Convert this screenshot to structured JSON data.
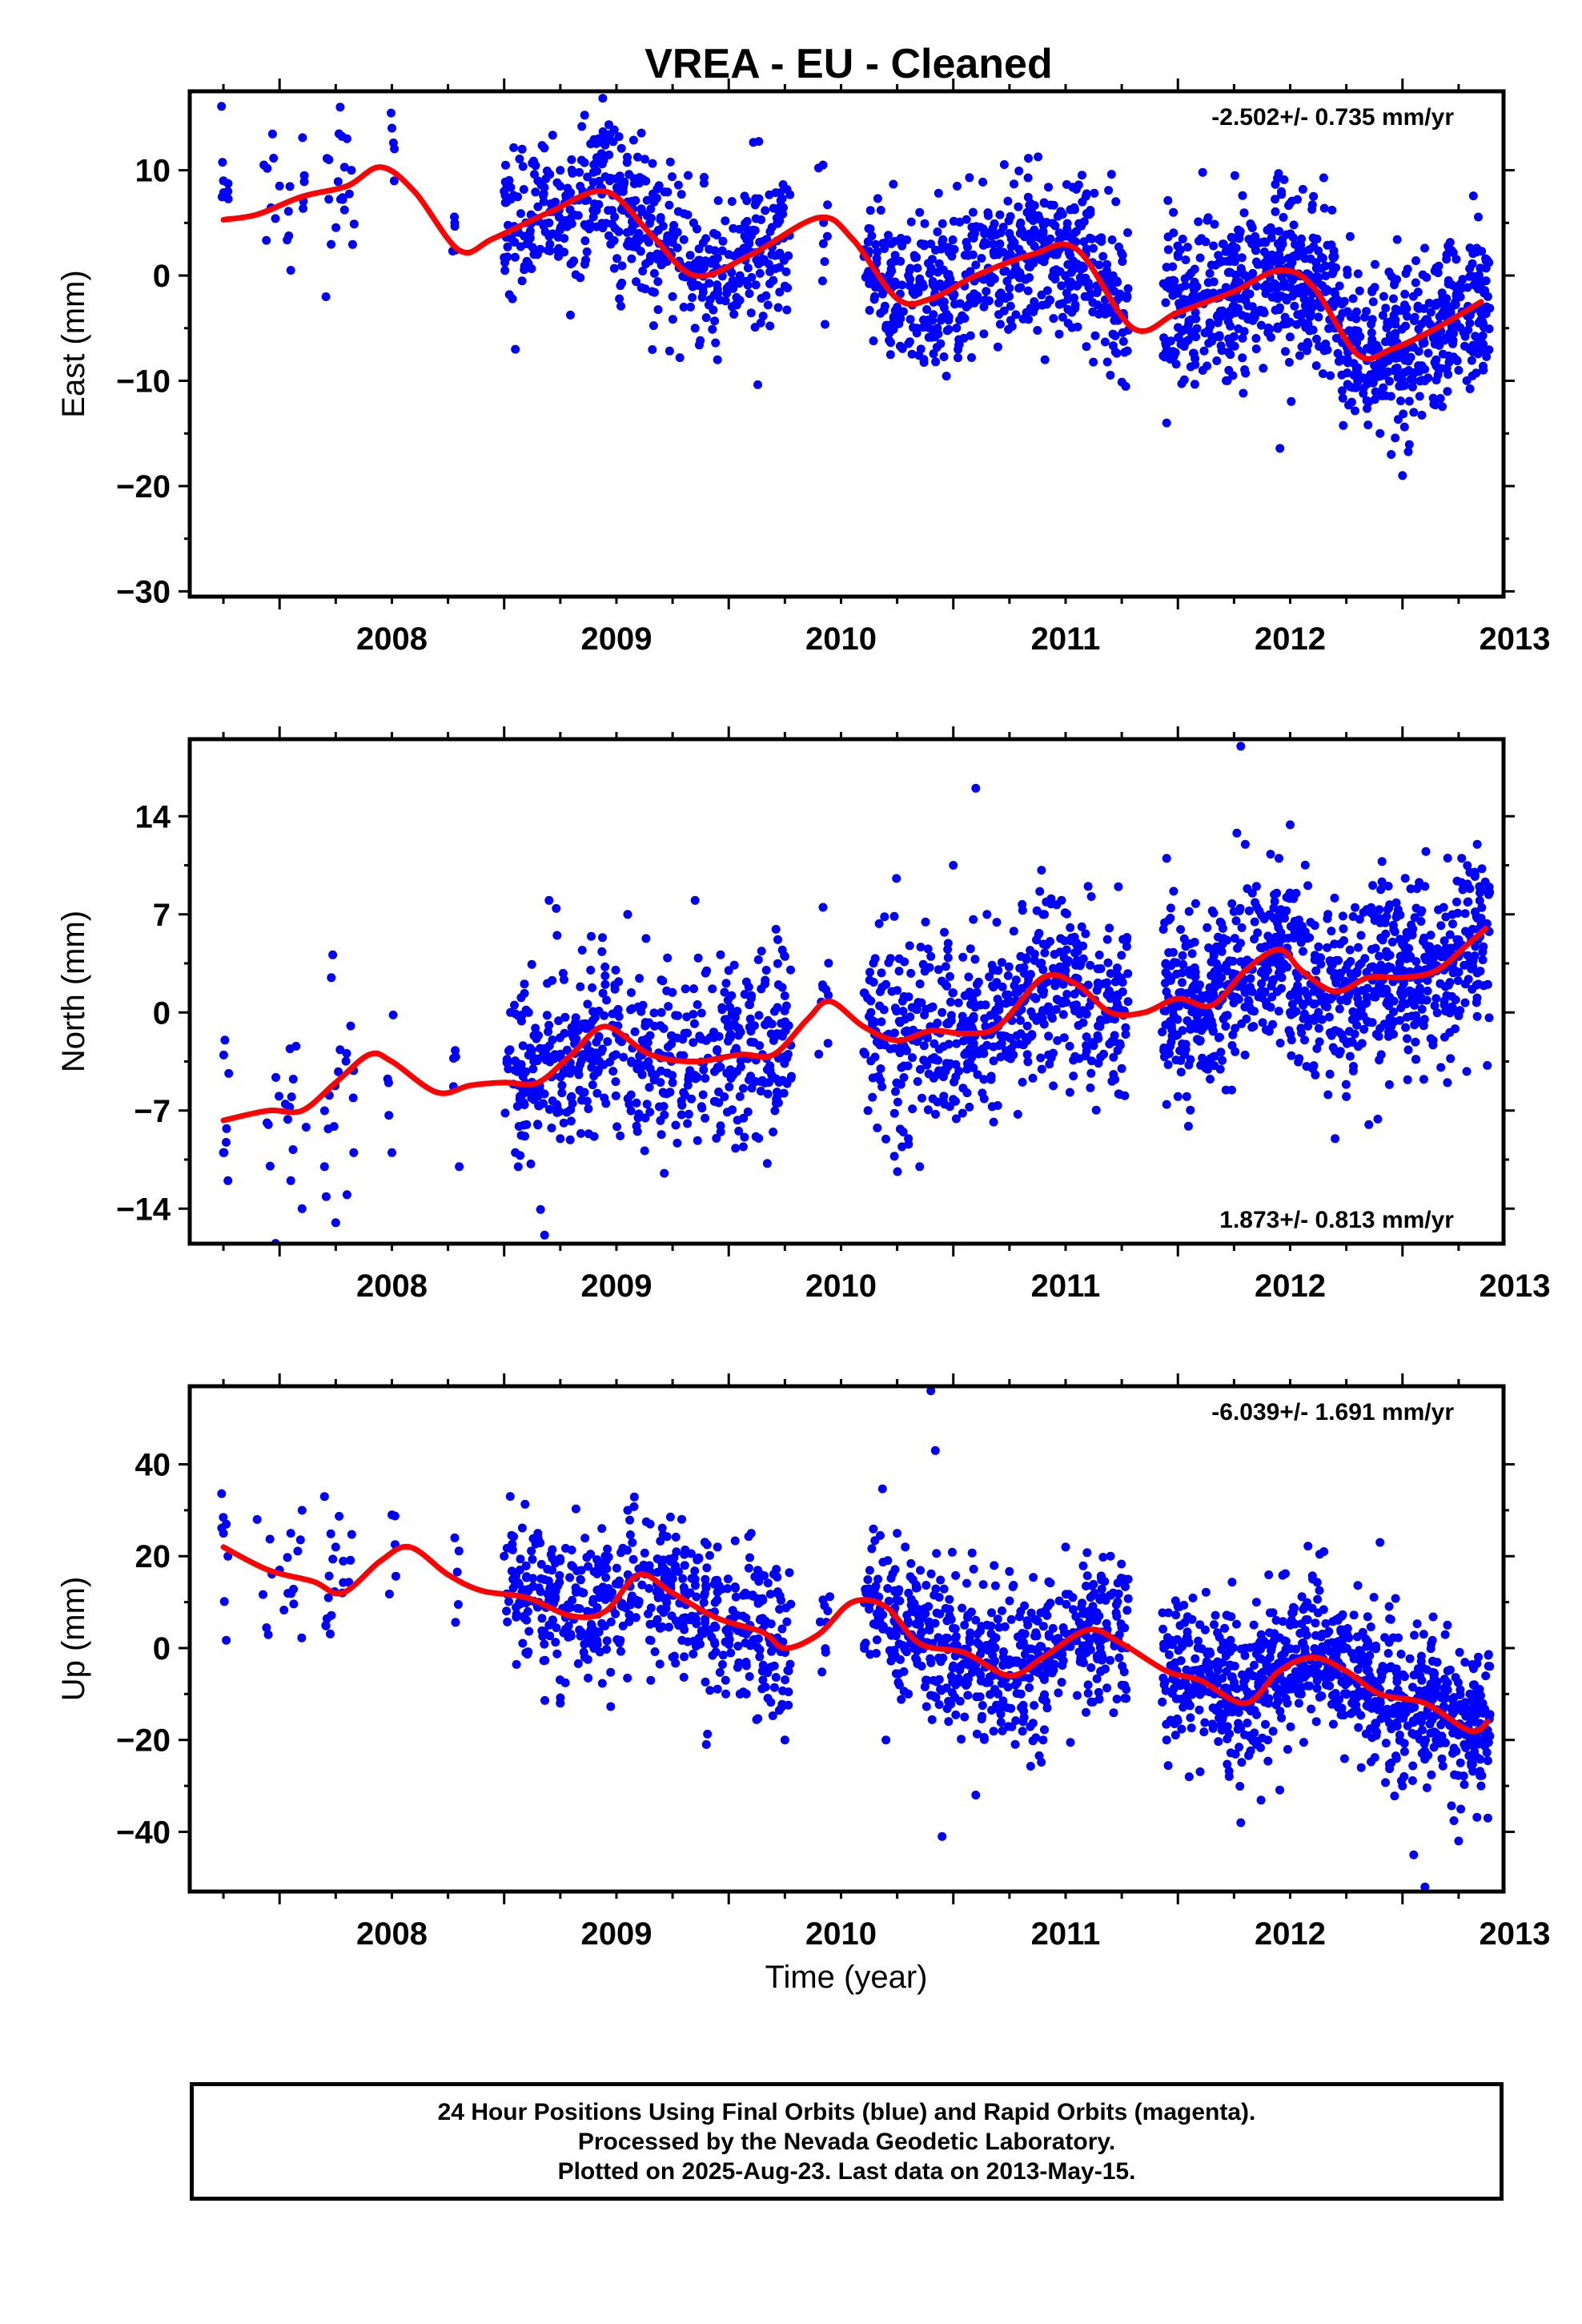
{
  "title": "VREA  - EU - Cleaned",
  "xlabel": "Time (year)",
  "footer": {
    "line1": "24 Hour Positions Using Final Orbits (blue) and Rapid Orbits (magenta).",
    "line2": "Processed by the Nevada Geodetic Laboratory.",
    "line3": "Plotted on 2025-Aug-23. Last data on 2013-May-15."
  },
  "colors": {
    "data": "#0000ff",
    "fit": "#ff0000",
    "frame": "#000000"
  },
  "chart_data": [
    {
      "type": "scatter",
      "component": "East",
      "ylabel": "East (mm)",
      "rate_text": "-2.502+/- 0.735 mm/yr",
      "rate_position": "top-right",
      "xlim": [
        2007.6,
        2013.45
      ],
      "ylim": [
        -30.5,
        17.5
      ],
      "yticks": [
        10,
        0,
        -10,
        -20,
        -30
      ],
      "xticks": [
        2008,
        2009,
        2010,
        2011,
        2012,
        2013
      ],
      "grid": false,
      "fit_curve": {
        "x": [
          2007.75,
          2007.9,
          2008.1,
          2008.3,
          2008.45,
          2008.6,
          2008.8,
          2008.95,
          2009.2,
          2009.45,
          2009.65,
          2009.85,
          2010.1,
          2010.4,
          2010.55,
          2010.75,
          2010.9,
          2011.1,
          2011.35,
          2011.55,
          2011.8,
          2012.0,
          2012.25,
          2012.45,
          2012.6,
          2012.8,
          2012.95,
          2013.15,
          2013.35
        ],
        "y": [
          5.3,
          5.8,
          7.5,
          8.5,
          10.3,
          8.0,
          2.4,
          3.5,
          6.0,
          8.0,
          4.0,
          0.0,
          2.0,
          5.5,
          3.5,
          -2.2,
          -2.2,
          0.0,
          2.0,
          2.5,
          -5.0,
          -3.5,
          -1.5,
          0.5,
          -1.0,
          -7.5,
          -7.0,
          -5.0,
          -2.5
        ]
      },
      "observations": {
        "x": [
          2007.75,
          2007.77,
          2007.93,
          2008.0,
          2008.05,
          2008.11,
          2008.22,
          2008.27,
          2008.3,
          2008.32,
          2008.5,
          2008.78,
          2009.0,
          2009.05,
          2009.08,
          2009.15,
          2009.2,
          2009.25,
          2009.3,
          2009.35,
          2009.42,
          2009.47,
          2009.55,
          2009.6,
          2009.7,
          2009.75,
          2009.8,
          2009.85,
          2009.9,
          2009.95,
          2010.0,
          2010.05,
          2010.15,
          2010.25,
          2010.42,
          2010.62,
          2010.65,
          2010.7,
          2010.75,
          2010.8,
          2010.85,
          2010.9,
          2010.95,
          2011.0,
          2011.05,
          2011.1,
          2011.15,
          2011.2,
          2011.25,
          2011.3,
          2011.35,
          2011.4,
          2011.45,
          2011.5,
          2011.55,
          2011.6,
          2011.65,
          2011.7,
          2011.75,
          2011.95,
          2011.98,
          2012.0,
          2012.05,
          2012.1,
          2012.15,
          2012.2,
          2012.25,
          2012.3,
          2012.35,
          2012.4,
          2012.45,
          2012.5,
          2012.6,
          2012.7,
          2012.75,
          2012.8,
          2012.85,
          2012.9,
          2012.95,
          2013.0,
          2013.05,
          2013.1,
          2013.15,
          2013.2,
          2013.25,
          2013.3,
          2013.35,
          2013.38
        ],
        "y": [
          9.0,
          8.0,
          10.5,
          8.5,
          0.5,
          9.5,
          11.0,
          16.0,
          13.0,
          10.0,
          14.0,
          5.0,
          8.0,
          -7.0,
          12.0,
          9.0,
          5.0,
          10.0,
          11.0,
          8.0,
          13.0,
          9.0,
          7.0,
          4.0,
          1.0,
          -2.0,
          -3.0,
          -5.0,
          -4.0,
          -8.0,
          2.0,
          0.0,
          3.0,
          -1.0,
          10.5,
          2.0,
          -2.0,
          -5.0,
          -3.0,
          0.0,
          6.0,
          3.0,
          -4.0,
          -2.0,
          -1.0,
          1.0,
          3.0,
          2.0,
          4.0,
          5.0,
          6.0,
          4.0,
          2.0,
          0.0,
          -1.0,
          -2.0,
          1.0,
          -3.0,
          -4.0,
          -14.0,
          6.0,
          2.0,
          0.0,
          -2.0,
          1.0,
          3.0,
          2.0,
          0.0,
          -1.0,
          1.0,
          2.0,
          0.0,
          -3.0,
          -5.0,
          -8.0,
          -10.0,
          -12.0,
          -15.0,
          -17.0,
          -19.0,
          -13.0,
          -10.0,
          -8.0,
          -11.0,
          -9.0,
          -7.0,
          -6.0,
          -2.0
        ]
      }
    },
    {
      "type": "scatter",
      "component": "North",
      "ylabel": "North (mm)",
      "rate_text": "1.873+/- 0.813 mm/yr",
      "rate_position": "bottom-right",
      "xlim": [
        2007.6,
        2013.45
      ],
      "ylim": [
        -16.5,
        19.5
      ],
      "yticks": [
        14,
        7,
        0,
        -7,
        -14
      ],
      "xticks": [
        2008,
        2009,
        2010,
        2011,
        2012,
        2013
      ],
      "grid": false,
      "fit_curve": {
        "x": [
          2007.75,
          2007.95,
          2008.1,
          2008.25,
          2008.4,
          2008.5,
          2008.7,
          2008.85,
          2009.0,
          2009.15,
          2009.3,
          2009.45,
          2009.65,
          2009.85,
          2010.05,
          2010.2,
          2010.35,
          2010.45,
          2010.6,
          2010.75,
          2010.9,
          2011.05,
          2011.2,
          2011.4,
          2011.55,
          2011.7,
          2011.85,
          2012.0,
          2012.15,
          2012.3,
          2012.45,
          2012.55,
          2012.7,
          2012.85,
          2013.0,
          2013.15,
          2013.3,
          2013.37
        ],
        "y": [
          -7.7,
          -7.0,
          -7.0,
          -5.0,
          -3.0,
          -3.5,
          -5.7,
          -5.2,
          -5.0,
          -5.0,
          -3.0,
          -1.0,
          -3.0,
          -3.5,
          -3.0,
          -3.0,
          -0.5,
          0.8,
          -1.0,
          -2.0,
          -1.3,
          -1.5,
          -1.0,
          2.5,
          2.0,
          0.0,
          0.0,
          1.0,
          0.5,
          3.0,
          4.5,
          3.0,
          1.5,
          2.5,
          2.5,
          3.0,
          5.0,
          6.0
        ]
      },
      "observations": {
        "x": [
          2007.75,
          2007.77,
          2007.95,
          2008.05,
          2008.1,
          2008.2,
          2008.25,
          2008.3,
          2008.33,
          2008.5,
          2008.8,
          2009.05,
          2009.1,
          2009.15,
          2009.2,
          2009.25,
          2009.3,
          2009.35,
          2009.45,
          2009.5,
          2009.55,
          2009.65,
          2009.7,
          2009.75,
          2009.85,
          2009.9,
          2009.95,
          2010.0,
          2010.05,
          2010.1,
          2010.15,
          2010.2,
          2010.25,
          2010.42,
          2010.62,
          2010.7,
          2010.8,
          2010.85,
          2010.9,
          2010.95,
          2011.0,
          2011.05,
          2011.1,
          2011.15,
          2011.2,
          2011.3,
          2011.4,
          2011.5,
          2011.6,
          2011.7,
          2011.75,
          2011.95,
          2012.0,
          2012.05,
          2012.1,
          2012.2,
          2012.28,
          2012.3,
          2012.35,
          2012.4,
          2012.45,
          2012.5,
          2012.6,
          2012.7,
          2012.75,
          2012.8,
          2012.85,
          2012.95,
          2013.0,
          2013.1,
          2013.15,
          2013.2,
          2013.25,
          2013.3,
          2013.35,
          2013.38
        ],
        "y": [
          -10.0,
          -12.0,
          -8.0,
          -12.0,
          -14.0,
          -11.0,
          -15.0,
          -13.0,
          -10.0,
          -10.0,
          -11.0,
          -10.0,
          -8.0,
          -6.0,
          8.0,
          -9.0,
          -6.0,
          -3.0,
          2.0,
          -1.0,
          7.0,
          -4.0,
          0.0,
          -5.0,
          8.0,
          -2.0,
          -4.0,
          3.0,
          -6.0,
          1.0,
          -3.0,
          -2.0,
          4.0,
          7.5,
          -7.0,
          2.0,
          -9.0,
          -11.0,
          4.0,
          0.0,
          10.5,
          -3.0,
          16.0,
          7.0,
          3.0,
          4.0,
          7.0,
          3.0,
          9.0,
          1.0,
          -4.0,
          11.0,
          -6.0,
          3.0,
          -2.0,
          6.0,
          19.0,
          12.0,
          9.0,
          3.0,
          11.0,
          0.0,
          -4.0,
          -9.0,
          -6.0,
          1.0,
          -8.0,
          -1.0,
          5.0,
          9.0,
          1.0,
          -5.0,
          4.0,
          10.0,
          6.0,
          2.0
        ]
      }
    },
    {
      "type": "scatter",
      "component": "Up",
      "ylabel": "Up (mm)",
      "rate_text": "-6.039+/- 1.691 mm/yr",
      "rate_position": "top-right",
      "xlim": [
        2007.6,
        2013.45
      ],
      "ylim": [
        -53.0,
        57.0
      ],
      "yticks": [
        40,
        20,
        0,
        -20,
        -40
      ],
      "xticks": [
        2008,
        2009,
        2010,
        2011,
        2012,
        2013
      ],
      "grid": false,
      "fit_curve": {
        "x": [
          2007.75,
          2007.95,
          2008.15,
          2008.28,
          2008.45,
          2008.58,
          2008.75,
          2008.9,
          2009.1,
          2009.3,
          2009.45,
          2009.6,
          2009.75,
          2009.95,
          2010.15,
          2010.25,
          2010.4,
          2010.55,
          2010.7,
          2010.85,
          2011.05,
          2011.25,
          2011.4,
          2011.6,
          2011.75,
          2011.95,
          2012.1,
          2012.3,
          2012.45,
          2012.6,
          2012.75,
          2012.9,
          2013.1,
          2013.3,
          2013.38
        ],
        "y": [
          22.0,
          17.0,
          14.5,
          12.0,
          19.0,
          22.0,
          16.0,
          12.5,
          11.0,
          7.0,
          8.0,
          16.0,
          12.0,
          6.5,
          3.5,
          0.0,
          3.0,
          10.0,
          9.0,
          1.0,
          -1.0,
          -6.0,
          -2.0,
          4.0,
          1.0,
          -5.0,
          -7.0,
          -12.0,
          -5.0,
          -2.0,
          -5.0,
          -10.0,
          -12.0,
          -18.0,
          -16.0
        ]
      },
      "observations": {
        "x": [
          2007.75,
          2007.77,
          2007.9,
          2008.0,
          2008.05,
          2008.1,
          2008.2,
          2008.25,
          2008.28,
          2008.5,
          2008.78,
          2009.0,
          2009.05,
          2009.1,
          2009.15,
          2009.2,
          2009.25,
          2009.3,
          2009.35,
          2009.45,
          2009.55,
          2009.6,
          2009.65,
          2009.75,
          2009.85,
          2009.9,
          2009.95,
          2010.0,
          2010.05,
          2010.1,
          2010.15,
          2010.2,
          2010.25,
          2010.42,
          2010.62,
          2010.7,
          2010.75,
          2010.8,
          2010.85,
          2010.9,
          2010.92,
          2010.95,
          2011.0,
          2011.05,
          2011.1,
          2011.15,
          2011.2,
          2011.3,
          2011.4,
          2011.5,
          2011.6,
          2011.7,
          2011.75,
          2011.95,
          2012.0,
          2012.05,
          2012.1,
          2012.2,
          2012.28,
          2012.3,
          2012.35,
          2012.4,
          2012.5,
          2012.6,
          2012.65,
          2012.7,
          2012.75,
          2012.85,
          2012.9,
          2012.95,
          2013.0,
          2013.05,
          2013.1,
          2013.15,
          2013.2,
          2013.25,
          2013.3,
          2013.35,
          2013.38
        ],
        "y": [
          25.0,
          20.0,
          28.0,
          17.0,
          25.0,
          30.0,
          33.0,
          22.0,
          12.0,
          29.0,
          24.0,
          20.0,
          14.0,
          10.0,
          25.0,
          5.0,
          -12.0,
          18.0,
          12.0,
          20.0,
          30.0,
          10.0,
          27.0,
          -2.0,
          15.0,
          -21.0,
          22.0,
          3.0,
          -10.0,
          25.0,
          -5.0,
          0.0,
          -20.0,
          10.5,
          12.0,
          -20.0,
          25.0,
          -10.0,
          5.0,
          56.0,
          43.0,
          -41.0,
          0.0,
          -15.0,
          -32.0,
          5.0,
          -10.0,
          8.0,
          -20.0,
          22.0,
          -8.0,
          20.0,
          0.0,
          -20.0,
          9.0,
          -28.0,
          -5.0,
          -15.0,
          -38.0,
          0.0,
          10.0,
          -20.0,
          5.0,
          15.0,
          21.0,
          -5.0,
          0.0,
          -10.0,
          23.0,
          -25.0,
          -30.0,
          -45.0,
          -52.0,
          -20.0,
          5.0,
          -42.0,
          -10.0,
          -30.0,
          -37.0
        ]
      }
    }
  ]
}
